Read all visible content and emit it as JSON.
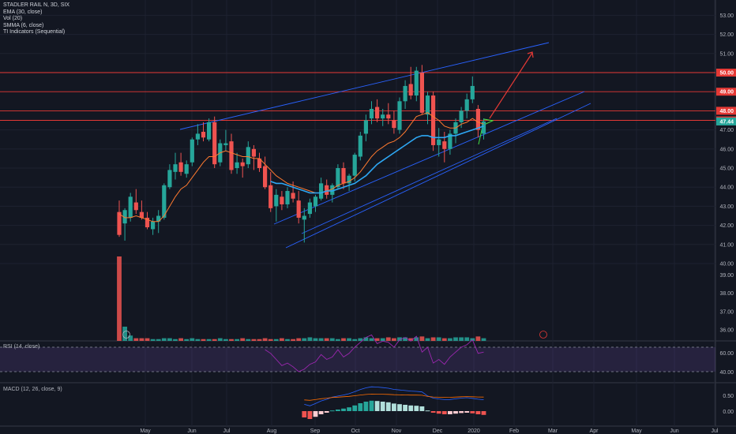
{
  "legend": {
    "title": "STADLER RAIL N, 3D, SIX",
    "ema": "EMA (30, close)",
    "vol": "Vol (20)",
    "smma": "SMMA (6, close)",
    "ti": "TI Indicators (Sequential)"
  },
  "rsi": {
    "label": "RSI (14, close)",
    "levels": [
      "60.00",
      "40.00"
    ]
  },
  "macd": {
    "label": "MACD (12, 26, close, 9)",
    "levels": [
      "0.50",
      "0.00"
    ]
  },
  "colors": {
    "up": "#26a69a",
    "down": "#ef5350",
    "ema": "#ff7a2f",
    "smma": "#2ea8f5",
    "channel": "#2962ff",
    "level": "#e53935"
  },
  "chart_data": [
    {
      "type": "candlestick",
      "title": "STADLER RAIL N, 3D, SIX",
      "y_ticks": [
        "54.00",
        "53.00",
        "52.00",
        "51.00",
        "50.00",
        "49.00",
        "48.00",
        "47.50",
        "47.44",
        "47.00",
        "46.00",
        "45.00",
        "44.00",
        "43.00",
        "42.00",
        "41.00",
        "40.00",
        "39.00",
        "38.00",
        "37.00",
        "36.00"
      ],
      "x_ticks": [
        "May",
        "Jun",
        "Jul",
        "Aug",
        "Sep",
        "Oct",
        "Nov",
        "Dec",
        "2020",
        "Feb",
        "Mar",
        "Apr",
        "May",
        "Jun",
        "Jul"
      ],
      "price_range": [
        40,
        54
      ],
      "horizontal_levels": [
        50.0,
        49.0,
        48.0,
        47.5
      ],
      "last_price": 47.44,
      "candles": [
        [
          42.7,
          43.3,
          41.4,
          41.5
        ],
        [
          42.1,
          42.9,
          41.2,
          42.8
        ],
        [
          42.4,
          43.7,
          42.2,
          43.5
        ],
        [
          43.2,
          43.9,
          42.6,
          42.8
        ],
        [
          42.7,
          43.3,
          42.3,
          42.4
        ],
        [
          42.4,
          42.7,
          41.8,
          41.9
        ],
        [
          41.8,
          42.4,
          41.5,
          42.2
        ],
        [
          42.2,
          42.8,
          41.6,
          42.5
        ],
        [
          42.4,
          44.2,
          42.3,
          44.1
        ],
        [
          44.0,
          45.2,
          43.9,
          44.9
        ],
        [
          44.8,
          45.8,
          44.4,
          45.2
        ],
        [
          45.3,
          45.8,
          44.6,
          44.8
        ],
        [
          44.7,
          45.4,
          44.5,
          45.2
        ],
        [
          45.3,
          46.6,
          45.1,
          46.5
        ],
        [
          46.5,
          47.3,
          46.2,
          46.8
        ],
        [
          46.9,
          47.4,
          46.4,
          46.6
        ],
        [
          46.5,
          47.6,
          46.4,
          47.4
        ],
        [
          47.4,
          47.7,
          45.0,
          45.2
        ],
        [
          45.3,
          46.5,
          45.1,
          46.3
        ],
        [
          46.2,
          47.0,
          45.9,
          46.3
        ],
        [
          46.4,
          46.8,
          44.7,
          44.9
        ],
        [
          45.0,
          45.8,
          44.7,
          45.3
        ],
        [
          45.3,
          45.5,
          44.5,
          45.1
        ],
        [
          45.2,
          46.4,
          45.0,
          46.1
        ],
        [
          46.0,
          46.2,
          44.9,
          45.6
        ],
        [
          45.5,
          45.8,
          44.8,
          45.0
        ],
        [
          45.1,
          45.6,
          43.9,
          44.0
        ],
        [
          44.1,
          44.8,
          42.7,
          42.9
        ],
        [
          43.0,
          43.9,
          42.2,
          43.6
        ],
        [
          43.5,
          43.8,
          42.8,
          43.1
        ],
        [
          43.1,
          44.0,
          42.9,
          43.8
        ],
        [
          43.7,
          44.3,
          43.2,
          43.4
        ],
        [
          43.3,
          43.8,
          42.1,
          42.4
        ],
        [
          42.3,
          42.9,
          41.1,
          42.5
        ],
        [
          42.6,
          43.4,
          42.4,
          43.2
        ],
        [
          43.0,
          43.6,
          42.7,
          43.5
        ],
        [
          43.4,
          44.5,
          43.3,
          44.2
        ],
        [
          44.1,
          44.4,
          43.4,
          43.6
        ],
        [
          43.6,
          44.2,
          43.2,
          44.1
        ],
        [
          44.0,
          45.2,
          43.9,
          45.0
        ],
        [
          45.0,
          45.3,
          43.9,
          44.2
        ],
        [
          44.2,
          44.7,
          43.8,
          44.6
        ],
        [
          44.6,
          45.8,
          44.3,
          45.7
        ],
        [
          45.6,
          46.9,
          45.4,
          46.7
        ],
        [
          46.8,
          47.8,
          46.4,
          47.5
        ],
        [
          47.6,
          48.5,
          47.3,
          48.1
        ],
        [
          48.2,
          48.6,
          47.4,
          47.6
        ],
        [
          47.6,
          48.1,
          47.2,
          47.8
        ],
        [
          47.8,
          48.4,
          47.3,
          47.6
        ],
        [
          47.5,
          48.0,
          46.8,
          47.1
        ],
        [
          47.0,
          48.7,
          46.8,
          48.5
        ],
        [
          48.5,
          49.6,
          48.1,
          49.3
        ],
        [
          49.4,
          50.3,
          48.6,
          48.8
        ],
        [
          48.8,
          50.3,
          48.5,
          50.1
        ],
        [
          50.0,
          50.4,
          47.8,
          47.9
        ],
        [
          47.8,
          49.0,
          47.3,
          48.8
        ],
        [
          48.8,
          49.0,
          45.9,
          46.2
        ],
        [
          46.2,
          47.1,
          45.6,
          46.5
        ],
        [
          46.4,
          46.9,
          45.3,
          46.0
        ],
        [
          46.0,
          47.0,
          45.7,
          46.8
        ],
        [
          46.8,
          47.6,
          46.3,
          47.4
        ],
        [
          47.4,
          48.2,
          47.1,
          48.0
        ],
        [
          48.0,
          48.9,
          47.6,
          48.6
        ],
        [
          48.6,
          49.8,
          48.4,
          49.3
        ],
        [
          48.1,
          48.3,
          46.6,
          47.0
        ],
        [
          46.8,
          47.6,
          46.5,
          47.44
        ]
      ],
      "ema_30": [
        42.6,
        42.4,
        42.4,
        42.5,
        42.4,
        42.3,
        42.2,
        42.2,
        42.5,
        43.0,
        43.5,
        43.9,
        44.1,
        44.5,
        44.9,
        45.3,
        45.6,
        45.6,
        45.8,
        45.9,
        45.8,
        45.7,
        45.6,
        45.6,
        45.5,
        45.5,
        45.2,
        44.9,
        44.6,
        44.4,
        44.2,
        44.1,
        44.0,
        43.9,
        43.8,
        43.7,
        43.7,
        43.8,
        43.9,
        44.1,
        44.2,
        44.3,
        44.5,
        44.8,
        45.2,
        45.6,
        45.9,
        46.1,
        46.3,
        46.4,
        46.6,
        46.9,
        47.3,
        47.7,
        47.8,
        47.9,
        47.7,
        47.5,
        47.2,
        47.1,
        47.1,
        47.3,
        47.4,
        47.6,
        47.4,
        47.3
      ],
      "smma_6": [
        null,
        null,
        null,
        null,
        null,
        null,
        null,
        null,
        null,
        null,
        null,
        null,
        null,
        null,
        null,
        null,
        null,
        null,
        null,
        null,
        null,
        null,
        null,
        null,
        null,
        null,
        null,
        44.3,
        44.2,
        44.2,
        44.1,
        44.0,
        43.9,
        43.8,
        43.7,
        43.7,
        43.7,
        43.8,
        43.8,
        43.9,
        44.0,
        44.1,
        44.2,
        44.4,
        44.6,
        44.9,
        45.2,
        45.4,
        45.6,
        45.8,
        46.0,
        46.2,
        46.4,
        46.6,
        46.7,
        46.7,
        46.6,
        46.6,
        46.6,
        46.7,
        46.7,
        46.8,
        46.9,
        47.0,
        47.1,
        47.2
      ],
      "volume": [
        95,
        16,
        6,
        3,
        3,
        3,
        2,
        2,
        3,
        3,
        2,
        3,
        2,
        3,
        2,
        2,
        2,
        2,
        3,
        2,
        2,
        2,
        3,
        2,
        2,
        2,
        3,
        2,
        2,
        3,
        2,
        2,
        3,
        3,
        4,
        3,
        3,
        3,
        3,
        2,
        3,
        3,
        2,
        3,
        4,
        3,
        3,
        3,
        4,
        3,
        4,
        4,
        3,
        4,
        5,
        3,
        4,
        4,
        3,
        3,
        4,
        4,
        4,
        3,
        5,
        3
      ],
      "rsi_14": [
        null,
        null,
        null,
        null,
        null,
        null,
        null,
        null,
        null,
        null,
        null,
        null,
        null,
        null,
        null,
        null,
        null,
        null,
        null,
        null,
        null,
        null,
        null,
        null,
        null,
        null,
        58,
        55,
        50,
        45,
        47,
        44,
        40,
        42,
        46,
        48,
        54,
        50,
        52,
        58,
        52,
        55,
        60,
        64,
        68,
        70,
        63,
        65,
        64,
        60,
        66,
        68,
        65,
        69,
        56,
        60,
        47,
        50,
        46,
        52,
        56,
        60,
        62,
        66,
        55,
        56
      ],
      "macd_hist": [
        null,
        null,
        null,
        null,
        null,
        null,
        null,
        null,
        null,
        null,
        null,
        null,
        null,
        null,
        null,
        null,
        null,
        null,
        null,
        null,
        null,
        null,
        null,
        null,
        null,
        null,
        null,
        null,
        null,
        null,
        null,
        null,
        null,
        -0.2,
        -0.25,
        -0.18,
        -0.1,
        -0.05,
        0.02,
        0.05,
        0.08,
        0.12,
        0.18,
        0.25,
        0.3,
        0.33,
        0.32,
        0.3,
        0.28,
        0.24,
        0.22,
        0.2,
        0.18,
        0.17,
        0.15,
        0.02,
        -0.05,
        -0.08,
        -0.1,
        -0.1,
        -0.08,
        -0.06,
        -0.05,
        -0.07,
        -0.1,
        -0.12
      ]
    }
  ]
}
